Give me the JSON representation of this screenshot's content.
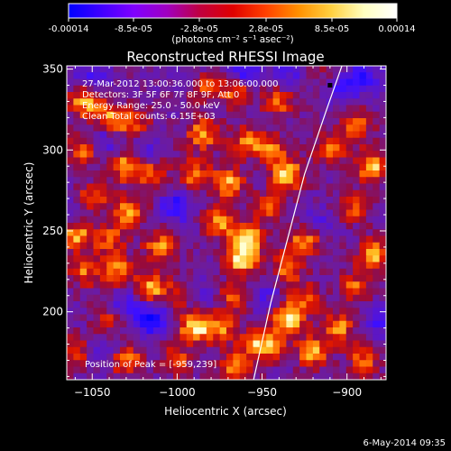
{
  "colorbar": {
    "tick_labels": [
      "-0.00014",
      "-8.5e-05",
      "-2.8e-05",
      "2.8e-05",
      "8.5e-05",
      "0.00014"
    ],
    "unit_label": "(photons cm⁻² s⁻¹ asec⁻²)",
    "colors": [
      "#0000ff",
      "#4000ff",
      "#8000ff",
      "#a000c0",
      "#c00040",
      "#e00000",
      "#ff4000",
      "#ff9000",
      "#ffd040",
      "#ffffc0",
      "#ffffff"
    ]
  },
  "chart_data": {
    "type": "heatmap",
    "title": "Reconstructed RHESSI Image",
    "xlabel": "Heliocentric X (arcsec)",
    "ylabel": "Heliocentric Y (arcsec)",
    "xlim": [
      -1065,
      -877
    ],
    "ylim": [
      158,
      352
    ],
    "xticks": [
      -1050,
      -1000,
      -950,
      -900
    ],
    "xtick_labels": [
      "−1050",
      "−1000",
      "−950",
      "−900"
    ],
    "yticks": [
      200,
      250,
      300,
      350
    ],
    "ytick_labels": [
      "200",
      "250",
      "300",
      "350"
    ],
    "annotations": [
      "27-Mar-2012 13:00:36.000 to 13:06:00.000",
      "Detectors: 3F 5F 6F 7F 8F 9F, Att 0",
      "Energy Range: 25.0 - 50.0 keV",
      "Clean    Total counts: 6.15E+03"
    ],
    "peak_text": "Position of Peak = [-959,239]",
    "peak": [
      -959,
      239
    ],
    "limb_curve": [
      [
        -955,
        158
      ],
      [
        -945,
        205
      ],
      [
        -935,
        245
      ],
      [
        -925,
        285
      ],
      [
        -912,
        325
      ],
      [
        -903,
        352
      ]
    ],
    "hot_spots": [
      {
        "x": -1055,
        "y": 330,
        "v": 0.8
      },
      {
        "x": -1040,
        "y": 320,
        "v": 0.7
      },
      {
        "x": -1025,
        "y": 315,
        "v": 0.6
      },
      {
        "x": -1055,
        "y": 300,
        "v": 0.7
      },
      {
        "x": -1030,
        "y": 290,
        "v": 0.8
      },
      {
        "x": -1015,
        "y": 285,
        "v": 0.6
      },
      {
        "x": -1050,
        "y": 270,
        "v": 0.6
      },
      {
        "x": -1028,
        "y": 262,
        "v": 0.75
      },
      {
        "x": -1060,
        "y": 248,
        "v": 0.9
      },
      {
        "x": -1040,
        "y": 245,
        "v": 0.6
      },
      {
        "x": -1010,
        "y": 240,
        "v": 0.7
      },
      {
        "x": -1035,
        "y": 225,
        "v": 0.7
      },
      {
        "x": -1055,
        "y": 225,
        "v": 0.6
      },
      {
        "x": -1015,
        "y": 215,
        "v": 0.8
      },
      {
        "x": -995,
        "y": 210,
        "v": 0.7
      },
      {
        "x": -990,
        "y": 190,
        "v": 0.9
      },
      {
        "x": -1040,
        "y": 195,
        "v": 0.5
      },
      {
        "x": -1060,
        "y": 175,
        "v": 0.6
      },
      {
        "x": -1030,
        "y": 170,
        "v": 0.7
      },
      {
        "x": -1000,
        "y": 170,
        "v": 0.5
      },
      {
        "x": -985,
        "y": 340,
        "v": 0.7
      },
      {
        "x": -965,
        "y": 335,
        "v": 0.6
      },
      {
        "x": -985,
        "y": 310,
        "v": 0.8
      },
      {
        "x": -960,
        "y": 305,
        "v": 0.6
      },
      {
        "x": -990,
        "y": 285,
        "v": 0.7
      },
      {
        "x": -970,
        "y": 280,
        "v": 0.8
      },
      {
        "x": -975,
        "y": 255,
        "v": 0.7
      },
      {
        "x": -959,
        "y": 245,
        "v": 1.0
      },
      {
        "x": -962,
        "y": 232,
        "v": 0.9
      },
      {
        "x": -965,
        "y": 210,
        "v": 0.6
      },
      {
        "x": -975,
        "y": 190,
        "v": 0.7
      },
      {
        "x": -955,
        "y": 180,
        "v": 0.6
      },
      {
        "x": -965,
        "y": 165,
        "v": 0.7
      },
      {
        "x": -940,
        "y": 330,
        "v": 0.6
      },
      {
        "x": -945,
        "y": 300,
        "v": 0.7
      },
      {
        "x": -935,
        "y": 285,
        "v": 0.9
      },
      {
        "x": -945,
        "y": 265,
        "v": 0.6
      },
      {
        "x": -925,
        "y": 245,
        "v": 0.8
      },
      {
        "x": -935,
        "y": 228,
        "v": 0.7
      },
      {
        "x": -935,
        "y": 195,
        "v": 0.9
      },
      {
        "x": -945,
        "y": 180,
        "v": 0.6
      },
      {
        "x": -920,
        "y": 175,
        "v": 0.8
      },
      {
        "x": -925,
        "y": 208,
        "v": 0.6
      },
      {
        "x": -905,
        "y": 190,
        "v": 0.7
      },
      {
        "x": -890,
        "y": 170,
        "v": 0.6
      },
      {
        "x": -910,
        "y": 345,
        "v": 0.5
      },
      {
        "x": -895,
        "y": 315,
        "v": 0.7
      },
      {
        "x": -885,
        "y": 290,
        "v": 0.9
      },
      {
        "x": -895,
        "y": 265,
        "v": 0.6
      },
      {
        "x": -885,
        "y": 235,
        "v": 0.8
      },
      {
        "x": -895,
        "y": 215,
        "v": 0.6
      },
      {
        "x": -910,
        "y": 300,
        "v": 0.6
      }
    ],
    "cold_spots": [
      {
        "x": -1050,
        "y": 345,
        "v": -0.5
      },
      {
        "x": -1045,
        "y": 305,
        "v": -0.5
      },
      {
        "x": -1020,
        "y": 300,
        "v": -0.4
      },
      {
        "x": -1000,
        "y": 265,
        "v": -0.6
      },
      {
        "x": -1015,
        "y": 195,
        "v": -0.8
      },
      {
        "x": -990,
        "y": 210,
        "v": -0.6
      },
      {
        "x": -1030,
        "y": 205,
        "v": -0.5
      },
      {
        "x": -960,
        "y": 350,
        "v": -0.6
      },
      {
        "x": -990,
        "y": 345,
        "v": -0.3
      },
      {
        "x": -1060,
        "y": 260,
        "v": -0.4
      },
      {
        "x": -1045,
        "y": 175,
        "v": -0.4
      },
      {
        "x": -935,
        "y": 345,
        "v": -0.4
      },
      {
        "x": -905,
        "y": 340,
        "v": -0.7
      },
      {
        "x": -890,
        "y": 345,
        "v": -0.6
      },
      {
        "x": -920,
        "y": 255,
        "v": -0.4
      },
      {
        "x": -880,
        "y": 195,
        "v": -0.5
      },
      {
        "x": -950,
        "y": 210,
        "v": -0.4
      }
    ]
  },
  "footer_date": "6-May-2014 09:35"
}
